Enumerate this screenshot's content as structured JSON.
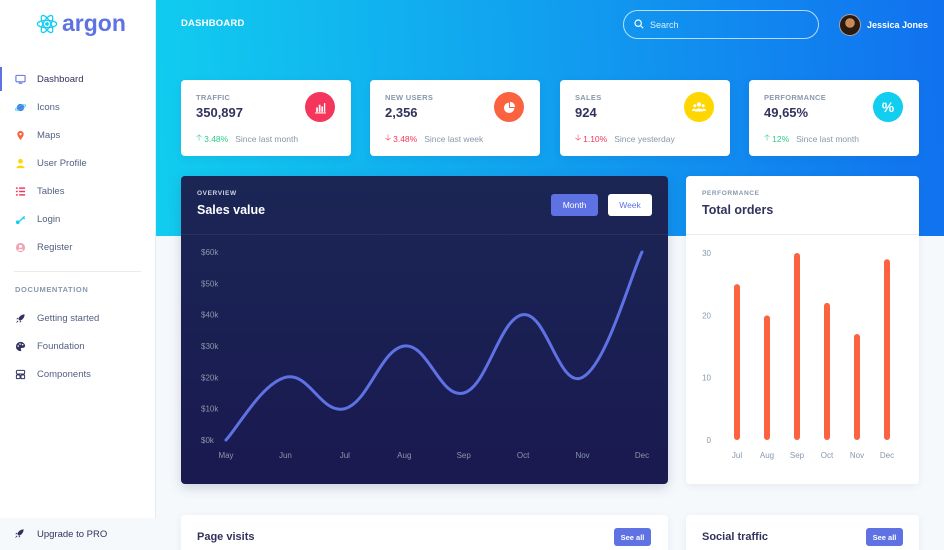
{
  "brand": {
    "name": "argon"
  },
  "sidebar": {
    "items": [
      {
        "label": "Dashboard",
        "icon": "monitor-icon",
        "color": "#5e72e4"
      },
      {
        "label": "Icons",
        "icon": "planet-icon",
        "color": "#5e72e4"
      },
      {
        "label": "Maps",
        "icon": "pin-icon",
        "color": "#fb6340"
      },
      {
        "label": "User Profile",
        "icon": "user-icon",
        "color": "#ffd600"
      },
      {
        "label": "Tables",
        "icon": "list-icon",
        "color": "#f5365c"
      },
      {
        "label": "Login",
        "icon": "key-icon",
        "color": "#11cdef"
      },
      {
        "label": "Register",
        "icon": "circle-user-icon",
        "color": "#f3a4b5"
      }
    ],
    "doc_heading": "DOCUMENTATION",
    "docs": [
      {
        "label": "Getting started",
        "icon": "spaceship-icon"
      },
      {
        "label": "Foundation",
        "icon": "palette-icon"
      },
      {
        "label": "Components",
        "icon": "ui-icon"
      }
    ],
    "upgrade": "Upgrade to PRO"
  },
  "header": {
    "title": "DASHBOARD",
    "search_placeholder": "Search",
    "user_name": "Jessica Jones"
  },
  "stats": [
    {
      "label": "TRAFFIC",
      "value": "350,897",
      "change": "3.48%",
      "direction": "up",
      "since": "Since last month",
      "icon": "bar-chart-icon",
      "color": "#f5365c"
    },
    {
      "label": "NEW USERS",
      "value": "2,356",
      "change": "3.48%",
      "direction": "down",
      "since": "Since last week",
      "icon": "pie-chart-icon",
      "color": "#fb6340"
    },
    {
      "label": "SALES",
      "value": "924",
      "change": "1.10%",
      "direction": "down",
      "since": "Since yesterday",
      "icon": "users-icon",
      "color": "#ffd600"
    },
    {
      "label": "PERFORMANCE",
      "value": "49,65%",
      "change": "12%",
      "direction": "up",
      "since": "Since last month",
      "icon": "percent-icon",
      "color": "#11cdef"
    }
  ],
  "sales": {
    "pre": "OVERVIEW",
    "title": "Sales value",
    "btn_month": "Month",
    "btn_week": "Week"
  },
  "orders": {
    "pre": "PERFORMANCE",
    "title": "Total orders"
  },
  "page_visits": {
    "title": "Page visits",
    "button": "See all"
  },
  "social_traffic": {
    "title": "Social traffic",
    "button": "See all"
  },
  "chart_data": [
    {
      "type": "line",
      "categories": [
        "May",
        "Jun",
        "Jul",
        "Aug",
        "Sep",
        "Oct",
        "Nov",
        "Dec"
      ],
      "values": [
        0,
        20,
        10,
        30,
        15,
        40,
        20,
        60
      ],
      "ylim": [
        0,
        60
      ],
      "yticks": [
        0,
        10,
        20,
        30,
        40,
        50,
        60
      ],
      "ytick_labels": [
        "$0k",
        "$10k",
        "$20k",
        "$30k",
        "$40k",
        "$50k",
        "$60k"
      ],
      "color": "#5e72e4"
    },
    {
      "type": "bar",
      "categories": [
        "Jul",
        "Aug",
        "Sep",
        "Oct",
        "Nov",
        "Dec"
      ],
      "values": [
        25,
        20,
        30,
        22,
        17,
        29
      ],
      "ylim": [
        0,
        30
      ],
      "yticks": [
        0,
        10,
        20,
        30
      ],
      "color": "#fb6340"
    }
  ]
}
